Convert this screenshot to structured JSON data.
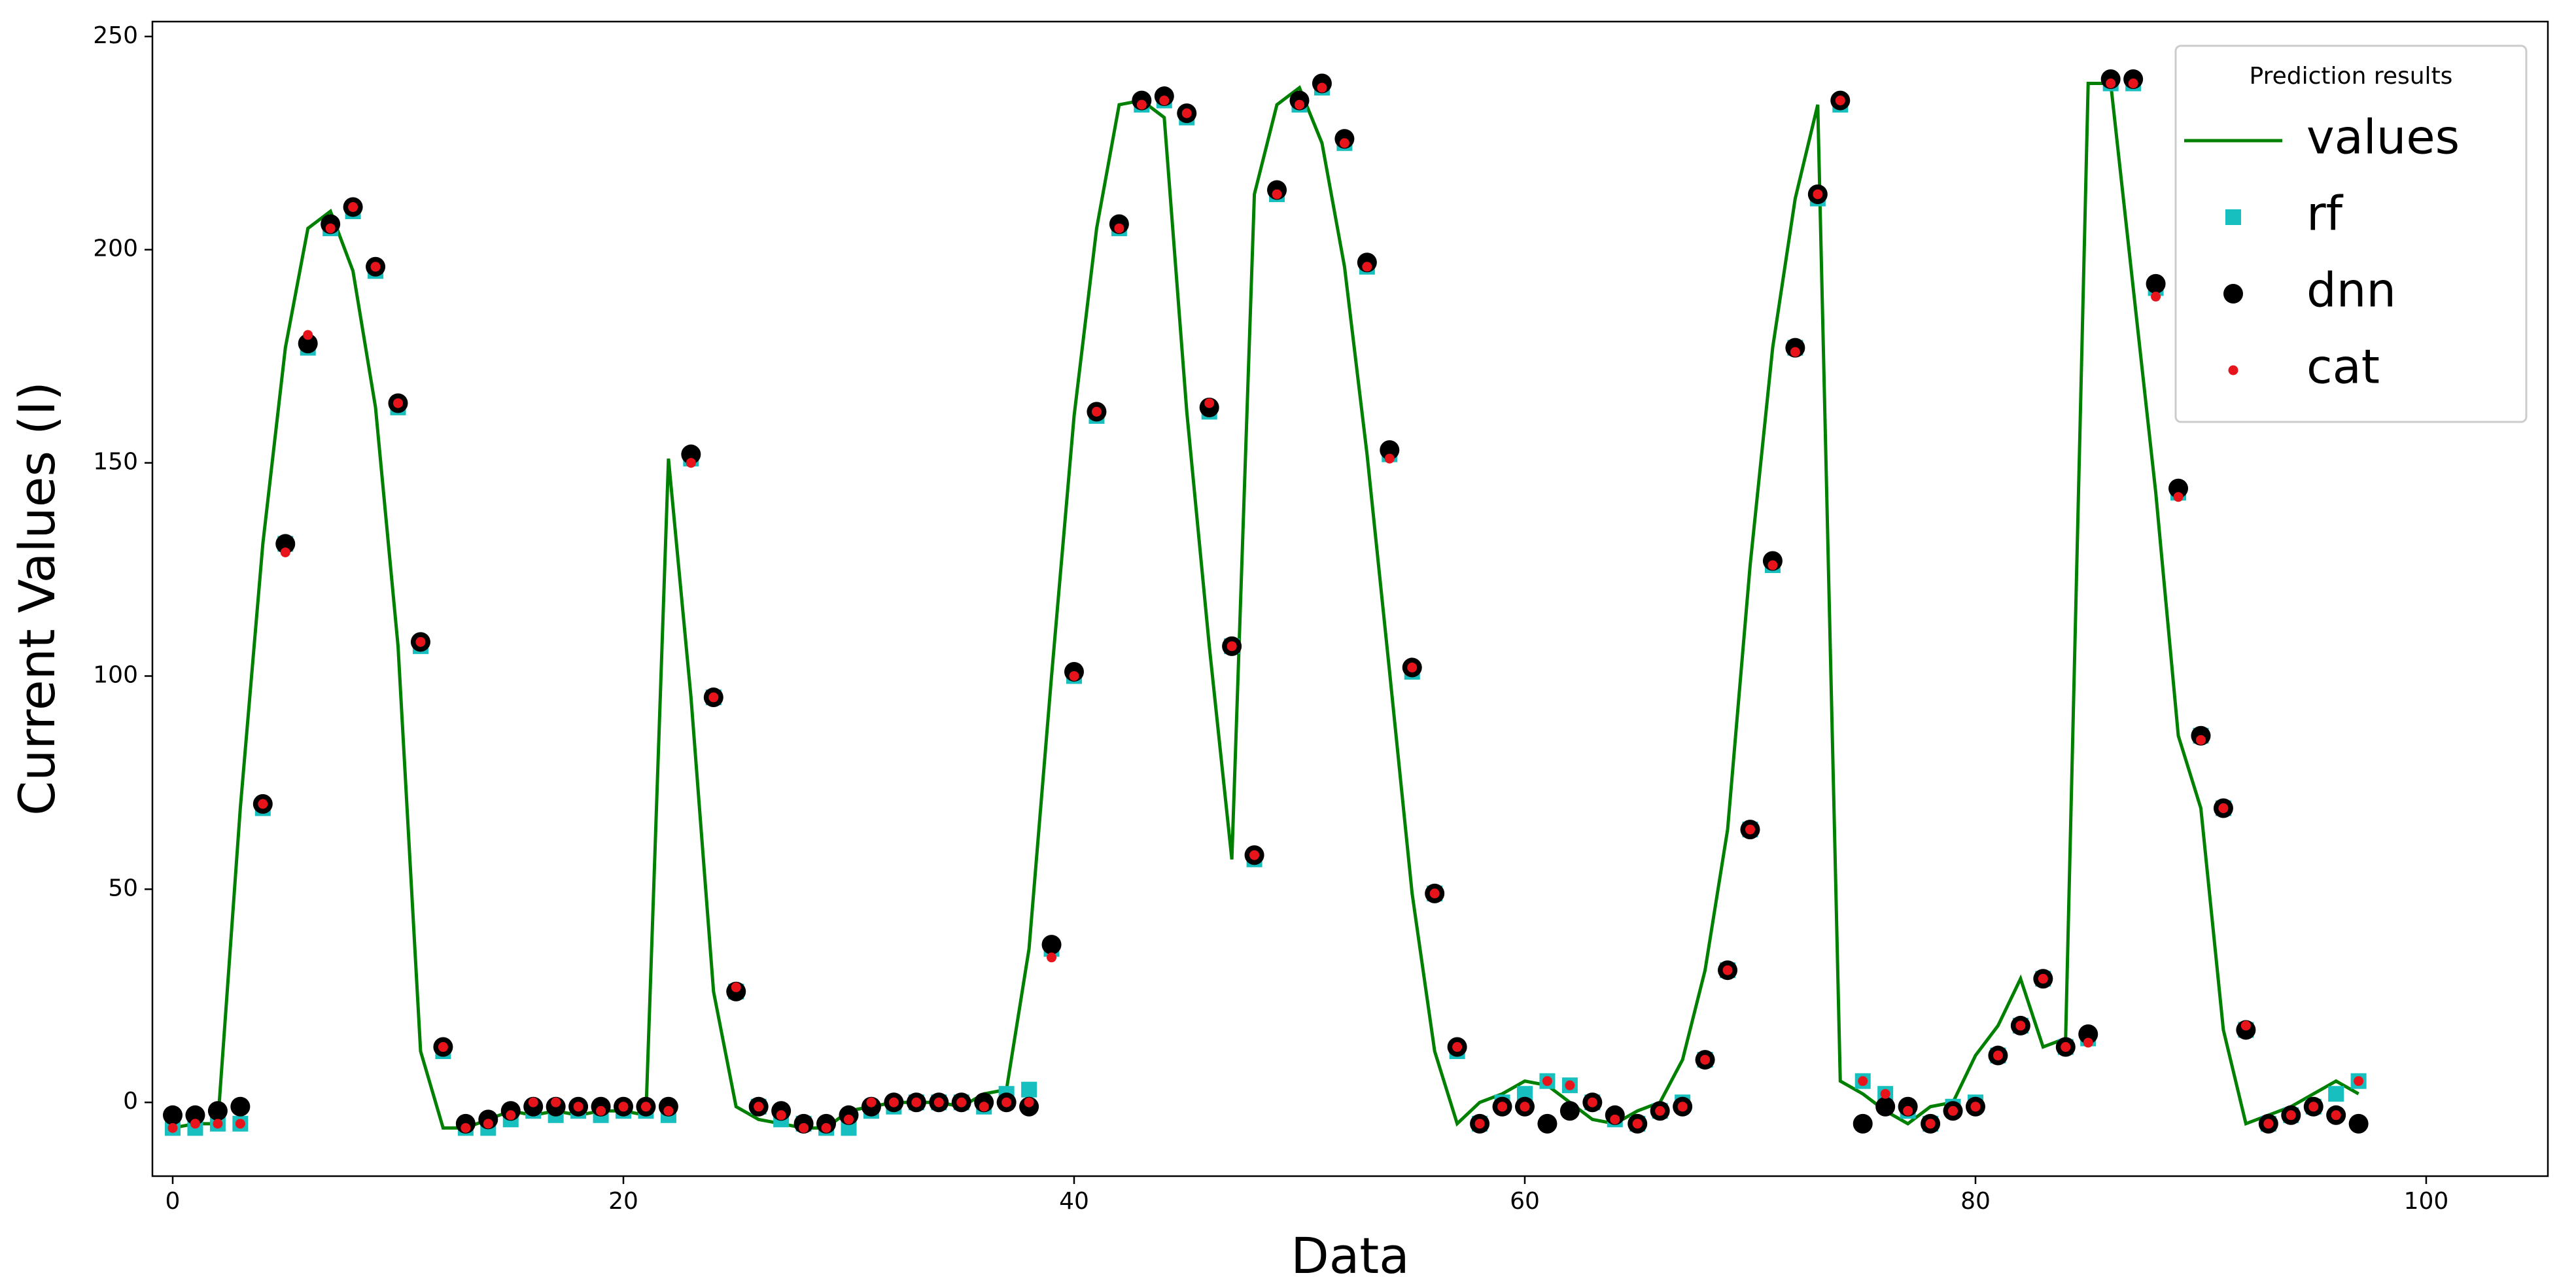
{
  "chart_data": {
    "type": "line",
    "x_label": "Data",
    "y_label": "Current Values (I)",
    "legend_title": "Prediction results",
    "legend_position": "upper right",
    "x": [
      0,
      1,
      2,
      3,
      4,
      5,
      6,
      7,
      8,
      9,
      10,
      11,
      12,
      13,
      14,
      15,
      16,
      17,
      18,
      19,
      20,
      21,
      22,
      23,
      24,
      25,
      26,
      27,
      28,
      29,
      30,
      31,
      32,
      33,
      34,
      35,
      36,
      37,
      38,
      39,
      40,
      41,
      42,
      43,
      44,
      45,
      46,
      47,
      48,
      49,
      50,
      51,
      52,
      53,
      54,
      55,
      56,
      57,
      58,
      59,
      60,
      61,
      62,
      63,
      64,
      65,
      66,
      67,
      68,
      69,
      70,
      71,
      72,
      73,
      74,
      75,
      76,
      77,
      78,
      79,
      80,
      81,
      82,
      83,
      84,
      85,
      86,
      87,
      88,
      89,
      90,
      91,
      92,
      93,
      94,
      95,
      96,
      97
    ],
    "series": [
      {
        "name": "values",
        "type": "line",
        "color": "#008000",
        "values": [
          -6,
          -5,
          -5,
          69,
          131,
          177,
          205,
          209,
          195,
          163,
          107,
          12,
          -6,
          -6,
          -4,
          -2,
          -3,
          -2,
          -3,
          -2,
          -2,
          -3,
          151,
          95,
          26,
          -1,
          -4,
          -5,
          -6,
          -6,
          -2,
          -1,
          0,
          0,
          0,
          -1,
          2,
          3,
          36,
          100,
          161,
          205,
          234,
          235,
          231,
          162,
          107,
          57,
          213,
          234,
          238,
          225,
          196,
          152,
          101,
          49,
          12,
          -5,
          0,
          2,
          5,
          4,
          0,
          -4,
          -5,
          -2,
          0,
          10,
          31,
          64,
          126,
          177,
          212,
          234,
          5,
          2,
          -2,
          -5,
          -1,
          0,
          11,
          18,
          29,
          13,
          15,
          239,
          239,
          191,
          143,
          86,
          69,
          17,
          -5,
          -3,
          -1,
          2,
          5,
          2
        ]
      },
      {
        "name": "rf",
        "type": "scatter",
        "marker": "square",
        "color": "#17bfbf",
        "values": [
          -6,
          -6,
          -5,
          -5,
          69,
          131,
          177,
          205,
          209,
          195,
          163,
          107,
          12,
          -6,
          -6,
          -4,
          -2,
          -3,
          -2,
          -3,
          -2,
          -2,
          -3,
          151,
          95,
          26,
          -1,
          -4,
          -5,
          -6,
          -6,
          -2,
          -1,
          0,
          0,
          0,
          -1,
          2,
          3,
          36,
          100,
          161,
          205,
          234,
          235,
          231,
          162,
          107,
          57,
          213,
          234,
          238,
          225,
          196,
          152,
          101,
          49,
          12,
          -5,
          0,
          2,
          5,
          4,
          0,
          -4,
          -5,
          -2,
          0,
          10,
          31,
          64,
          126,
          177,
          212,
          234,
          5,
          2,
          -2,
          -5,
          -1,
          0,
          11,
          18,
          29,
          13,
          15,
          239,
          239,
          191,
          143,
          86,
          69,
          17,
          -5,
          -3,
          -1,
          2,
          5
        ]
      },
      {
        "name": "dnn",
        "type": "scatter",
        "marker": "circle",
        "color": "#000000",
        "values": [
          -3,
          -3,
          -2,
          -1,
          70,
          131,
          178,
          206,
          210,
          196,
          164,
          108,
          13,
          -5,
          -4,
          -2,
          -1,
          -1,
          -1,
          -1,
          -1,
          -1,
          -1,
          152,
          95,
          26,
          -1,
          -2,
          -5,
          -5,
          -3,
          -1,
          0,
          0,
          0,
          0,
          0,
          0,
          -1,
          37,
          101,
          162,
          206,
          235,
          236,
          232,
          163,
          107,
          58,
          214,
          235,
          239,
          226,
          197,
          153,
          102,
          49,
          13,
          -5,
          -1,
          -1,
          -5,
          -2,
          0,
          -3,
          -5,
          -2,
          -1,
          10,
          31,
          64,
          127,
          177,
          213,
          235,
          -5,
          -1,
          -1,
          -5,
          -2,
          -1,
          11,
          18,
          29,
          13,
          16,
          240,
          240,
          192,
          144,
          86,
          69,
          17,
          -5,
          -3,
          -1,
          -3,
          -5
        ]
      },
      {
        "name": "cat",
        "type": "scatter",
        "marker": "dot",
        "color": "#e8141c",
        "values": [
          -6,
          -5,
          -5,
          -5,
          70,
          129,
          180,
          205,
          210,
          196,
          164,
          108,
          13,
          -6,
          -5,
          -3,
          0,
          0,
          -1,
          -2,
          -1,
          -1,
          -2,
          150,
          95,
          27,
          -1,
          -3,
          -6,
          -6,
          -4,
          0,
          0,
          0,
          0,
          0,
          -1,
          0,
          0,
          34,
          100,
          162,
          205,
          234,
          235,
          232,
          164,
          107,
          58,
          213,
          234,
          238,
          225,
          196,
          151,
          102,
          49,
          13,
          -5,
          -1,
          -1,
          5,
          4,
          0,
          -4,
          -5,
          -2,
          -1,
          10,
          31,
          64,
          126,
          176,
          213,
          235,
          5,
          2,
          -2,
          -5,
          -2,
          -1,
          11,
          18,
          29,
          13,
          14,
          239,
          239,
          189,
          142,
          85,
          69,
          18,
          -5,
          -3,
          -1,
          -3,
          5
        ]
      }
    ],
    "xlim": [
      -0.9,
      105.4
    ],
    "ylim": [
      -17.3,
      253.5
    ],
    "xticks": [
      0,
      20,
      40,
      60,
      80,
      100
    ],
    "yticks": [
      0,
      50,
      100,
      150,
      200,
      250
    ]
  }
}
